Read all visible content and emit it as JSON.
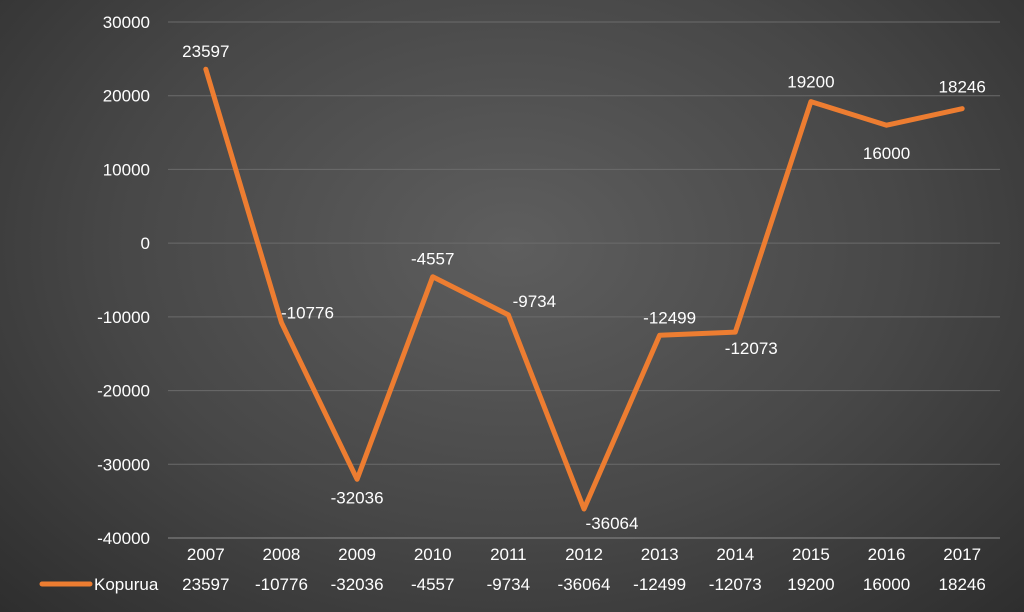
{
  "chart_data": {
    "type": "line",
    "categories": [
      "2007",
      "2008",
      "2009",
      "2010",
      "2011",
      "2012",
      "2013",
      "2014",
      "2015",
      "2016",
      "2017"
    ],
    "series": [
      {
        "name": "Kopurua",
        "values": [
          23597,
          -10776,
          -32036,
          -4557,
          -9734,
          -36064,
          -12499,
          -12073,
          19200,
          16000,
          18246
        ],
        "color": "#ed7d31"
      }
    ],
    "yticks": [
      "30000",
      "20000",
      "10000",
      "0",
      "-10000",
      "-20000",
      "-30000",
      "-40000"
    ],
    "ylim": [
      -40000,
      30000
    ],
    "grid": true,
    "data_labels": [
      "23597",
      "-10776",
      "-32036",
      "-4557",
      "-9734",
      "-36064",
      "-12499",
      "-12073",
      "19200",
      "16000",
      "18246"
    ],
    "data_table": true,
    "legend_position": "bottom-left (in data table)"
  }
}
